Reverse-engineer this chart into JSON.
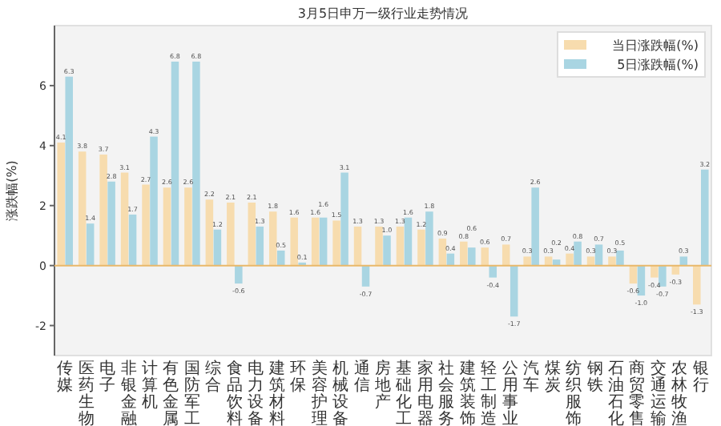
{
  "chart_data": {
    "type": "bar",
    "title": "3月5日申万一级行业走势情况",
    "ylabel": "涨跌幅(%)",
    "categories": [
      "传媒",
      "医药生物",
      "电子",
      "非银金融",
      "计算机",
      "有色金属",
      "国防军工",
      "综合",
      "食品饮料",
      "电力设备",
      "建筑材料",
      "环保",
      "美容护理",
      "机械设备",
      "通信",
      "房地产",
      "基础化工",
      "家用电器",
      "社会服务",
      "建筑装饰",
      "轻工制造",
      "公用事业",
      "汽车",
      "煤炭",
      "纺织服饰",
      "钢铁",
      "石油石化",
      "商贸零售",
      "交通运输",
      "农林牧渔",
      "银行"
    ],
    "series": [
      {
        "name": "当日涨跌幅(%)",
        "color": "#f7dcae",
        "values": [
          4.1,
          3.8,
          3.7,
          3.1,
          2.7,
          2.6,
          2.6,
          2.2,
          2.1,
          2.1,
          1.8,
          1.6,
          1.6,
          1.5,
          1.3,
          1.3,
          1.3,
          1.2,
          0.9,
          0.8,
          0.6,
          0.7,
          0.3,
          0.3,
          0.4,
          0.3,
          0.3,
          -0.6,
          -0.4,
          -0.3,
          -1.3
        ],
        "value_labels": [
          "4.1",
          "3.8",
          "3.7",
          "3.1",
          "2.7",
          "2.6",
          "2.6",
          "2.2",
          "2.1",
          "2.1",
          "1.8",
          "1.6",
          "1.6",
          "1.5",
          "1.3",
          "1.3",
          "1.3",
          "1.2",
          "0.9",
          "0.8",
          "0.6",
          "0.7",
          "0.3",
          "0.3",
          "0.4",
          "0.3",
          "0.3",
          "-0.6",
          "-0.4",
          "-0.3",
          "-1.3"
        ]
      },
      {
        "name": "5日涨跌幅(%)",
        "color": "#a9d5e2",
        "values": [
          6.3,
          1.4,
          2.8,
          1.7,
          4.3,
          6.8,
          6.8,
          1.2,
          -0.6,
          1.3,
          0.5,
          0.1,
          1.6,
          3.1,
          -0.7,
          1.0,
          1.6,
          1.8,
          0.4,
          0.6,
          -0.4,
          -1.7,
          2.6,
          0.2,
          0.8,
          0.7,
          0.5,
          -1.0,
          -0.7,
          0.3,
          3.2
        ],
        "value_labels": [
          "6.3",
          "1.4",
          "2.8",
          "1.7",
          "4.3",
          "6.8",
          "6.8",
          "1.2",
          "-0.6",
          "1.3",
          "0.5",
          "0.1",
          "1.6",
          "3.1",
          "-0.7",
          "1.0",
          "1.6",
          "1.8",
          "0.4",
          "0.6",
          "-0.4",
          "-1.7",
          "2.6",
          "0.2",
          "0.8",
          "0.7",
          "0.5",
          "-1.0",
          "-0.7",
          "0.3",
          "3.2"
        ]
      }
    ],
    "ref_lines": [
      {
        "axis": "y",
        "value": 0,
        "color": "#e9b86a"
      }
    ],
    "ylim": [
      -3,
      8
    ],
    "yticks": [
      -2,
      0,
      2,
      4,
      6
    ],
    "legend": "top right"
  }
}
